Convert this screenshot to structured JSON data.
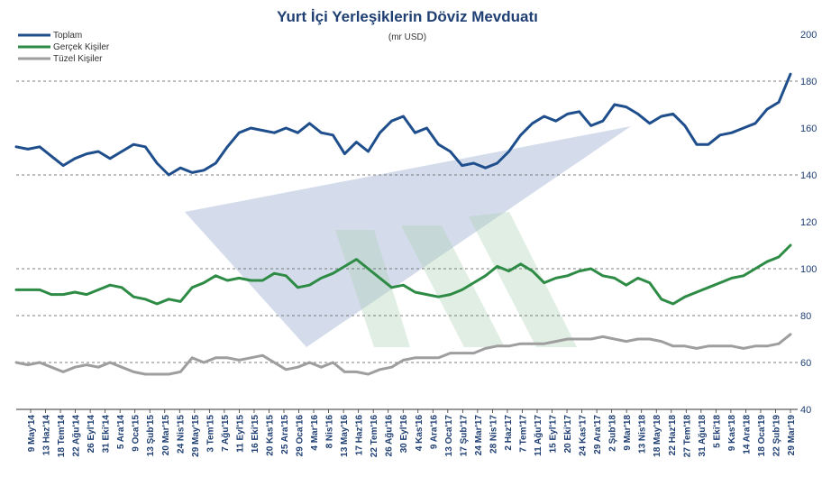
{
  "chart_data": {
    "type": "line",
    "title": "Yurt İçi Yerleşiklerin  Döviz Mevduatı",
    "subtitle": "(mr USD)",
    "ylim": [
      40,
      200
    ],
    "y_ticks": [
      40,
      60,
      80,
      100,
      120,
      140,
      160,
      180,
      200
    ],
    "dashed_gridlines": [
      40,
      60,
      80,
      100,
      140,
      180
    ],
    "legend_position": "top-left",
    "x_tick_labels": [
      "9 May'14",
      "13 Haz'14",
      "18 Tem'14",
      "22 Ağu'14",
      "26 Eyl'14",
      "31 Eki'14",
      "5 Ara'14",
      "9 Oca'15",
      "13 Şub'15",
      "20 Mar'15",
      "24 Nis'15",
      "29 May'15",
      "3 Tem'15",
      "7 Ağu'15",
      "11 Eyl'15",
      "16 Eki'15",
      "20 Kas'15",
      "25 Ara'15",
      "29 Oca'16",
      "4 Mar'16",
      "8 Nis'16",
      "13 May'16",
      "17 Haz'16",
      "22 Tem'16",
      "26 Ağu'16",
      "30 Eyl'16",
      "4 Kas'16",
      "9 Ara'16",
      "13 Oca'17",
      "17 Şub'17",
      "24 Mar'17",
      "28 Nis'17",
      "2 Haz'17",
      "7 Tem'17",
      "11 Ağu'17",
      "15 Eyl'17",
      "20 Eki'17",
      "24 Kas'17",
      "29 Ara'17",
      "2 Şub'18",
      "9 Mar'18",
      "13 Nis'18",
      "18 May'18",
      "22 Haz'18",
      "27 Tem'18",
      "31 Ağu'18",
      "5 Eki'18",
      "9 Kas'18",
      "14 Ara'18",
      "18 Oca'19",
      "22 Şub'19",
      "29 Mar'19"
    ],
    "series": [
      {
        "name": "Toplam",
        "color": "#1f4e8c",
        "values": [
          152,
          151,
          152,
          148,
          144,
          147,
          149,
          150,
          147,
          150,
          153,
          152,
          145,
          140,
          143,
          141,
          142,
          145,
          152,
          158,
          160,
          159,
          158,
          160,
          158,
          162,
          158,
          157,
          149,
          154,
          150,
          158,
          163,
          165,
          158,
          160,
          153,
          150,
          144,
          145,
          143,
          145,
          150,
          157,
          162,
          165,
          163,
          166,
          167,
          161,
          163,
          170,
          169,
          166,
          162,
          165,
          166,
          161,
          153,
          153,
          157,
          158,
          160,
          162,
          168,
          171,
          183
        ]
      },
      {
        "name": "Gerçek Kişiler",
        "color": "#2e8b45",
        "values": [
          91,
          91,
          91,
          89,
          89,
          90,
          89,
          91,
          93,
          92,
          88,
          87,
          85,
          87,
          86,
          92,
          94,
          97,
          95,
          96,
          95,
          95,
          98,
          97,
          92,
          93,
          96,
          98,
          101,
          104,
          100,
          96,
          92,
          93,
          90,
          89,
          88,
          89,
          91,
          94,
          97,
          101,
          99,
          102,
          99,
          94,
          96,
          97,
          99,
          100,
          97,
          96,
          93,
          96,
          94,
          87,
          85,
          88,
          90,
          92,
          94,
          96,
          97,
          100,
          103,
          105,
          110
        ]
      },
      {
        "name": "Tüzel Kişiler",
        "color": "#9e9e9e",
        "values": [
          60,
          59,
          60,
          58,
          56,
          58,
          59,
          58,
          60,
          58,
          56,
          55,
          55,
          55,
          56,
          62,
          60,
          62,
          62,
          61,
          62,
          63,
          60,
          57,
          58,
          60,
          58,
          60,
          56,
          56,
          55,
          57,
          58,
          61,
          62,
          62,
          62,
          64,
          64,
          64,
          66,
          67,
          67,
          68,
          68,
          68,
          69,
          70,
          70,
          70,
          71,
          70,
          69,
          70,
          70,
          69,
          67,
          67,
          66,
          67,
          67,
          67,
          66,
          67,
          67,
          68,
          72
        ]
      }
    ]
  }
}
